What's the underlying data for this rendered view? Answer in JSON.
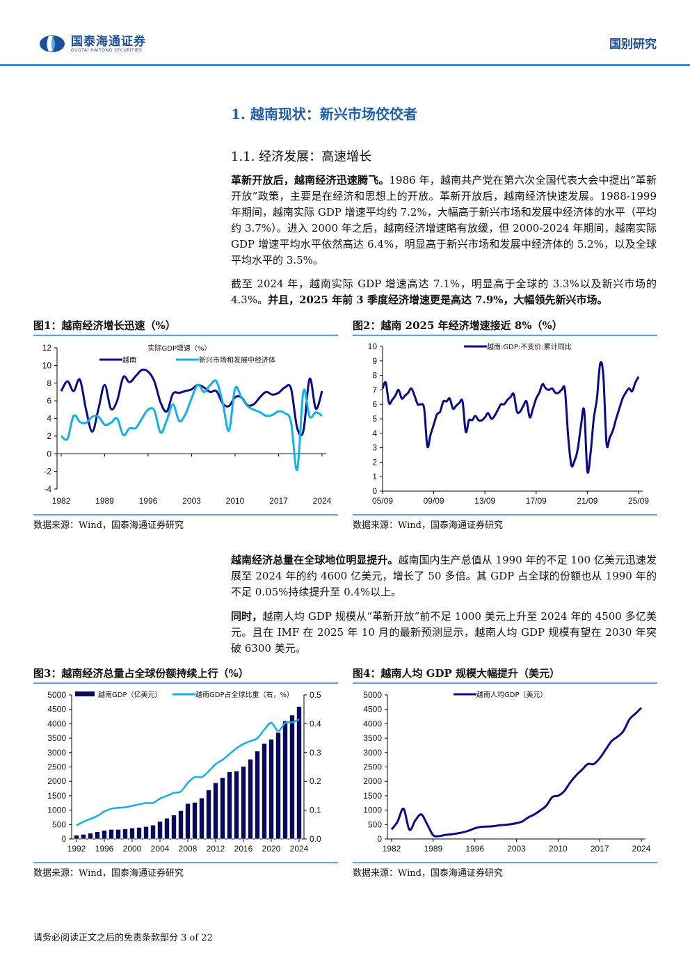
{
  "header": {
    "brand_cn": "国泰海通证券",
    "brand_en": "GUOTAI HAITONG SECURITIES",
    "section": "国别研究"
  },
  "h1": "1. 越南现状：新兴市场佼佼者",
  "h2": "1.1. 经济发展：高速增长",
  "p1": {
    "bold": "革新开放后，越南经济迅速腾飞。",
    "text": "1986 年，越南共产党在第六次全国代表大会中提出“革新开放”政策，主要是在经济和思想上的开放。革新开放后，越南经济快速发展。1988-1999 年期间，越南实际 GDP 增速平均约 7.2%，大幅高于新兴市场和发展中经济体的水平（平均约 3.7%）。进入 2000 年之后，越南经济增速略有放缓，但 2000-2024 年期间，越南实际 GDP 增速平均水平依然高达 6.4%，明显高于新兴市场和发展中经济体的 5.2%，以及全球平均水平的 3.5%。"
  },
  "p2": {
    "text": "截至 2024 年，越南实际 GDP 增速高达 7.1%，明显高于全球的 3.3%以及新兴市场的 4.3%。",
    "bold": "并且，2025 年前 3 季度经济增速更是高达 7.9%，大幅领先新兴市场。"
  },
  "p3": {
    "bold": "越南经济总量在全球地位明显提升。",
    "text": "越南国内生产总值从 1990 年的不足 100 亿美元迅速发展至 2024 年的约 4600 亿美元，增长了 50 多倍。其 GDP 占全球的份额也从 1990 年的不足 0.05%持续提升至 0.4%以上。"
  },
  "p4": {
    "bold": "同时，",
    "text": "越南人均 GDP 规模从“革新开放”前不足 1000 美元上升至 2024 年的 4500 多亿美元。且在 IMF 在 2025 年 10 月的最新预测显示，越南人均 GDP 规模有望在 2030 年突破 6300 美元。"
  },
  "source": "数据来源：Wind，国泰海通证券研究",
  "footer": "请务必阅读正文之后的免责条款部分 3 of 22",
  "colors": {
    "dark": "#0a0a8c",
    "light": "#12b0ec",
    "rule": "#5aa7e6",
    "brand": "#1d4f9a"
  },
  "chart_data": [
    {
      "type": "line",
      "title": "图1：越南经济增长迅速（%）",
      "subtitle": "实际GDP增速（%）",
      "ylim": [
        -4,
        12
      ],
      "yticks": [
        -4,
        -2,
        0,
        2,
        4,
        6,
        8,
        10,
        12
      ],
      "xtick_labels": [
        "1982",
        "1989",
        "1996",
        "2003",
        "2010",
        "2017",
        "2024"
      ],
      "x": [
        1982,
        1983,
        1984,
        1985,
        1986,
        1987,
        1988,
        1989,
        1990,
        1991,
        1992,
        1993,
        1994,
        1995,
        1996,
        1997,
        1998,
        1999,
        2000,
        2001,
        2002,
        2003,
        2004,
        2005,
        2006,
        2007,
        2008,
        2009,
        2010,
        2011,
        2012,
        2013,
        2014,
        2015,
        2016,
        2017,
        2018,
        2019,
        2020,
        2021,
        2022,
        2023,
        2024
      ],
      "series": [
        {
          "name": "越南",
          "color": "#0a0a8c",
          "values": [
            7.1,
            8.2,
            7.1,
            8.4,
            5.0,
            2.5,
            5.1,
            7.8,
            5.1,
            6.0,
            8.7,
            8.1,
            8.8,
            9.5,
            9.3,
            8.2,
            5.8,
            4.8,
            6.8,
            6.9,
            7.1,
            7.3,
            7.8,
            7.5,
            7.0,
            7.1,
            5.7,
            5.4,
            6.4,
            6.4,
            5.5,
            5.6,
            6.4,
            7.0,
            6.7,
            6.9,
            7.5,
            7.4,
            2.9,
            2.6,
            8.5,
            5.1,
            7.1
          ]
        },
        {
          "name": "新兴市场和发展中经济体",
          "color": "#12b0ec",
          "values": [
            2.0,
            1.7,
            4.3,
            3.6,
            3.5,
            4.2,
            4.2,
            3.3,
            3.5,
            4.0,
            2.1,
            2.9,
            2.9,
            4.0,
            5.0,
            4.9,
            2.4,
            3.8,
            5.6,
            3.7,
            4.5,
            6.3,
            7.8,
            7.0,
            7.8,
            8.2,
            5.8,
            2.6,
            7.4,
            6.4,
            5.4,
            5.0,
            4.7,
            4.3,
            4.4,
            4.8,
            4.6,
            3.6,
            -1.8,
            7.1,
            4.2,
            4.7,
            4.3
          ]
        }
      ]
    },
    {
      "type": "line",
      "title": "图2：越南 2025 年经济增速接近 8%（%）",
      "ylim": [
        0,
        10
      ],
      "yticks": [
        0,
        1,
        2,
        3,
        4,
        5,
        6,
        7,
        8,
        9,
        10
      ],
      "xtick_labels": [
        "05/09",
        "09/09",
        "13/09",
        "17/09",
        "21/09",
        "25/09"
      ],
      "x_start": "2005Q3",
      "x_end": "2025Q3",
      "frequency": "quarterly",
      "series": [
        {
          "name": "越南:GDP:不变价:累计同比",
          "color": "#0a0a8c",
          "values": [
            7.1,
            7.5,
            6.1,
            6.3,
            6.6,
            7.0,
            6.4,
            6.6,
            6.8,
            7.1,
            6.6,
            6.0,
            6.0,
            5.7,
            3.1,
            3.9,
            4.6,
            5.3,
            5.5,
            6.2,
            6.2,
            6.4,
            5.7,
            5.9,
            6.1,
            6.2,
            4.1,
            4.9,
            4.9,
            5.2,
            4.9,
            4.9,
            5.1,
            5.4,
            5.0,
            5.2,
            5.6,
            6.0,
            6.0,
            6.3,
            6.5,
            6.7,
            5.5,
            5.5,
            5.9,
            6.2,
            5.1,
            5.7,
            6.4,
            6.8,
            7.4,
            7.1,
            7.0,
            7.1,
            6.8,
            6.8,
            7.0,
            7.0,
            3.8,
            1.8,
            2.1,
            2.9,
            4.5,
            5.6,
            1.4,
            2.6,
            5.0,
            6.4,
            8.8,
            8.0,
            3.3,
            3.7,
            4.2,
            5.0,
            5.7,
            6.4,
            6.8,
            7.1,
            6.9,
            7.5,
            7.9
          ]
        }
      ]
    },
    {
      "type": "bar+line",
      "title": "图3：越南经济总量占全球份额持续上行（%）",
      "ylim": [
        0,
        5000
      ],
      "yticks": [
        0,
        500,
        1000,
        1500,
        2000,
        2500,
        3000,
        3500,
        4000,
        4500,
        5000
      ],
      "y2lim": [
        0,
        0.5
      ],
      "y2ticks": [
        "0.0",
        "0.1",
        "0.2",
        "0.3",
        "0.4",
        "0.5"
      ],
      "xtick_labels": [
        "1992",
        "1996",
        "2000",
        "2004",
        "2008",
        "2012",
        "2016",
        "2020",
        "2024"
      ],
      "x": [
        1992,
        1993,
        1994,
        1995,
        1996,
        1997,
        1998,
        1999,
        2000,
        2001,
        2002,
        2003,
        2004,
        2005,
        2006,
        2007,
        2008,
        2009,
        2010,
        2011,
        2012,
        2013,
        2014,
        2015,
        2016,
        2017,
        2018,
        2019,
        2020,
        2021,
        2022,
        2023,
        2024
      ],
      "series": [
        {
          "name": "越南GDP（亿美元）",
          "axis": "left",
          "type": "bar",
          "color": "#0a0a5c",
          "values": [
            130,
            160,
            200,
            250,
            300,
            330,
            330,
            350,
            380,
            400,
            430,
            480,
            610,
            720,
            830,
            980,
            1230,
            1270,
            1420,
            1700,
            1950,
            2130,
            2330,
            2360,
            2520,
            2770,
            3050,
            3320,
            3460,
            3700,
            4100,
            4300,
            4600
          ]
        },
        {
          "name": "越南GDP占全球比重（右，%）",
          "axis": "right",
          "type": "line",
          "color": "#12b0ec",
          "values": [
            0.047,
            0.06,
            0.07,
            0.08,
            0.095,
            0.105,
            0.108,
            0.11,
            0.115,
            0.12,
            0.125,
            0.125,
            0.14,
            0.15,
            0.16,
            0.165,
            0.195,
            0.215,
            0.215,
            0.235,
            0.26,
            0.275,
            0.295,
            0.315,
            0.33,
            0.34,
            0.35,
            0.38,
            0.403,
            0.375,
            0.403,
            0.405,
            0.415
          ]
        }
      ]
    },
    {
      "type": "line",
      "title": "图4：越南人均 GDP 规模大幅提升（美元）",
      "ylim": [
        0,
        5000
      ],
      "yticks": [
        0,
        500,
        1000,
        1500,
        2000,
        2500,
        3000,
        3500,
        4000,
        4500,
        5000
      ],
      "xtick_labels": [
        "1982",
        "1989",
        "1996",
        "2003",
        "2010",
        "2017",
        "2024"
      ],
      "x": [
        1982,
        1983,
        1984,
        1985,
        1986,
        1987,
        1988,
        1989,
        1990,
        1991,
        1992,
        1993,
        1994,
        1995,
        1996,
        1997,
        1998,
        1999,
        2000,
        2001,
        2002,
        2003,
        2004,
        2005,
        2006,
        2007,
        2008,
        2009,
        2010,
        2011,
        2012,
        2013,
        2014,
        2015,
        2016,
        2017,
        2018,
        2019,
        2020,
        2021,
        2022,
        2023,
        2024
      ],
      "series": [
        {
          "name": "越南人均GDP（美元）",
          "color": "#0a0a8c",
          "values": [
            330,
            600,
            1050,
            320,
            650,
            850,
            500,
            130,
            100,
            140,
            160,
            190,
            230,
            290,
            370,
            420,
            430,
            440,
            470,
            490,
            510,
            550,
            610,
            750,
            850,
            990,
            1150,
            1450,
            1500,
            1650,
            1950,
            2200,
            2400,
            2600,
            2600,
            2800,
            3100,
            3400,
            3550,
            3750,
            4150,
            4350,
            4550
          ]
        }
      ]
    }
  ]
}
